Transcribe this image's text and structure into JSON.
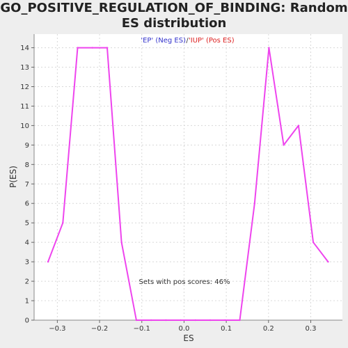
{
  "chart_data": {
    "type": "line",
    "title": "GO_POSITIVE_REGULATION_OF_BINDING: Random ES distribution",
    "xlabel": "ES",
    "ylabel": "P(ES)",
    "xlim": [
      -0.355,
      0.375
    ],
    "ylim": [
      0,
      14.7
    ],
    "xticks": [
      -0.3,
      -0.2,
      -0.1,
      0.0,
      0.1,
      0.2,
      0.3
    ],
    "xtick_labels": [
      "−0.3",
      "−0.2",
      "−0.1",
      "0.0",
      "0.1",
      "0.2",
      "0.3"
    ],
    "yticks": [
      0,
      1,
      2,
      3,
      4,
      5,
      6,
      7,
      8,
      9,
      10,
      11,
      12,
      13,
      14
    ],
    "grid": true,
    "legend": [
      {
        "label": "'EP' (Neg ES)",
        "color": "#3333cc"
      },
      {
        "label": "'IUP' (Pos ES)",
        "color": "#dd2222"
      }
    ],
    "legend_separator": "/",
    "annotation": "Sets with pos scores: 46%",
    "series": [
      {
        "color": "#ee44ee",
        "x": [
          -0.322,
          -0.287,
          -0.252,
          -0.217,
          -0.182,
          -0.148,
          -0.113,
          -0.078,
          -0.043,
          -0.008,
          0.027,
          0.062,
          0.097,
          0.132,
          0.167,
          0.201,
          0.236,
          0.271,
          0.306,
          0.341
        ],
        "y": [
          3,
          5,
          14,
          14,
          14,
          4,
          0,
          0,
          0,
          0,
          0,
          0,
          0,
          0,
          6,
          14,
          9,
          10,
          4,
          3
        ]
      }
    ]
  }
}
